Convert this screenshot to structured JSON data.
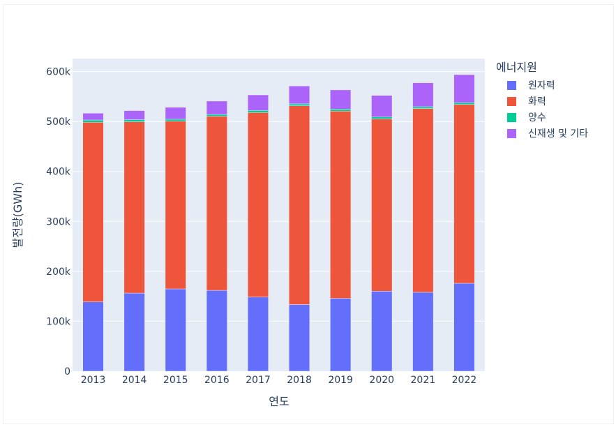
{
  "chart_data": {
    "type": "bar",
    "barmode": "stack",
    "categories": [
      "2013",
      "2014",
      "2015",
      "2016",
      "2017",
      "2018",
      "2019",
      "2020",
      "2021",
      "2022"
    ],
    "series": [
      {
        "name": "원자력",
        "color": "#636efa",
        "values": [
          138800,
          156400,
          164800,
          161900,
          148400,
          133500,
          145900,
          160200,
          158000,
          176100
        ]
      },
      {
        "name": "화력",
        "color": "#ef553b",
        "values": [
          359700,
          343100,
          336000,
          348700,
          369600,
          398000,
          375000,
          345000,
          368000,
          358000
        ]
      },
      {
        "name": "양수",
        "color": "#00cc96",
        "values": [
          4500,
          4200,
          3800,
          3600,
          4200,
          3800,
          4000,
          3800,
          3600,
          3700
        ]
      },
      {
        "name": "신재생 및 기타",
        "color": "#ab63fa",
        "values": [
          13600,
          18100,
          23800,
          26700,
          31100,
          35900,
          38400,
          43200,
          47900,
          56100
        ]
      }
    ],
    "xlabel": "연도",
    "ylabel": "발전량(GWh)",
    "ylim": [
      0,
      626000
    ],
    "yticks": [
      0,
      100000,
      200000,
      300000,
      400000,
      500000,
      600000
    ],
    "ytick_labels": [
      "0",
      "100k",
      "200k",
      "300k",
      "400k",
      "500k",
      "600k"
    ],
    "legend_title": "에너지원",
    "legend_position": "top-right",
    "grid": true
  }
}
